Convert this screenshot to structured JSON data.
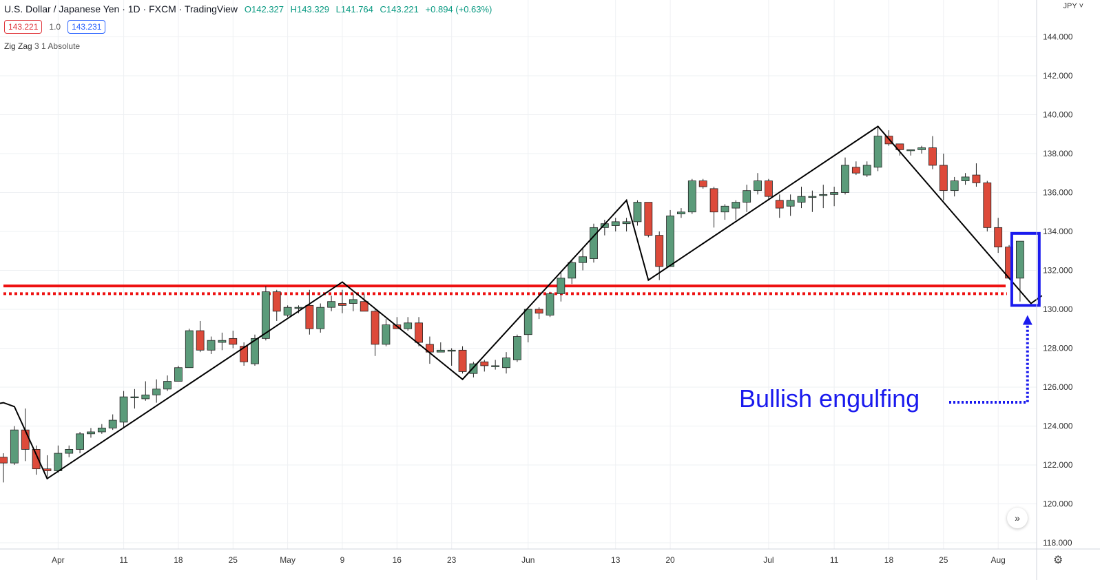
{
  "header": {
    "symbol_title": "U.S. Dollar / Japanese Yen · 1D · FXCM · TradingView",
    "ohlc": {
      "open": "O142.327",
      "high": "H143.329",
      "low": "L141.764",
      "close": "C143.221",
      "change": "+0.894 (+0.63%)"
    },
    "sell_price": "143.221",
    "spread": "1.0",
    "buy_price": "143.231",
    "indicator_name": "Zig Zag",
    "indicator_params": "3 1 Absolute",
    "currency": "JPY ˅"
  },
  "annotation": {
    "text": "Bullish engulfing"
  },
  "colors": {
    "up": "#5b9b7a",
    "down": "#dd4a3a",
    "zigzag": "#000000",
    "support": "#ee1111",
    "annotation": "#1a1aee"
  },
  "icons": {
    "scroll": "double-chevron-right-icon",
    "settings": "gear-icon"
  },
  "chart_data": {
    "type": "candlestick",
    "symbol": "USDJPY",
    "y_axis": {
      "min": 117.5,
      "max": 145.5,
      "ticks": [
        "118.000",
        "120.000",
        "122.000",
        "124.000",
        "126.000",
        "128.000",
        "130.000",
        "132.000",
        "134.000",
        "136.000",
        "138.000",
        "140.000",
        "142.000",
        "144.000"
      ],
      "side": "right"
    },
    "x_labels": [
      {
        "label": "Apr",
        "index": 5
      },
      {
        "label": "11",
        "index": 11
      },
      {
        "label": "18",
        "index": 16
      },
      {
        "label": "25",
        "index": 21
      },
      {
        "label": "May",
        "index": 26
      },
      {
        "label": "9",
        "index": 31
      },
      {
        "label": "16",
        "index": 36
      },
      {
        "label": "23",
        "index": 41
      },
      {
        "label": "Jun",
        "index": 48
      },
      {
        "label": "13",
        "index": 56
      },
      {
        "label": "20",
        "index": 61
      },
      {
        "label": "Jul",
        "index": 70
      },
      {
        "label": "11",
        "index": 76
      },
      {
        "label": "18",
        "index": 81
      },
      {
        "label": "25",
        "index": 86
      },
      {
        "label": "Aug",
        "index": 91
      }
    ],
    "ohlc": [
      [
        122.4,
        122.6,
        121.1,
        122.1
      ],
      [
        122.1,
        124.0,
        122.0,
        123.8
      ],
      [
        123.8,
        124.9,
        122.2,
        122.8
      ],
      [
        122.8,
        123.0,
        121.5,
        121.8
      ],
      [
        121.8,
        122.5,
        121.4,
        121.7
      ],
      [
        121.7,
        123.0,
        121.6,
        122.6
      ],
      [
        122.6,
        123.0,
        122.4,
        122.8
      ],
      [
        122.8,
        123.7,
        122.6,
        123.6
      ],
      [
        123.6,
        123.9,
        123.4,
        123.7
      ],
      [
        123.7,
        124.1,
        123.6,
        123.9
      ],
      [
        123.9,
        124.6,
        123.8,
        124.3
      ],
      [
        124.2,
        125.8,
        123.9,
        125.5
      ],
      [
        125.5,
        125.9,
        124.9,
        125.5
      ],
      [
        125.4,
        126.3,
        125.3,
        125.6
      ],
      [
        125.6,
        126.4,
        125.2,
        125.9
      ],
      [
        125.9,
        126.6,
        125.8,
        126.3
      ],
      [
        126.3,
        127.1,
        126.3,
        127.0
      ],
      [
        127.0,
        129.0,
        127.0,
        128.9
      ],
      [
        128.9,
        129.4,
        127.8,
        127.9
      ],
      [
        127.9,
        128.6,
        127.7,
        128.4
      ],
      [
        128.3,
        128.8,
        127.9,
        128.4
      ],
      [
        128.5,
        128.9,
        128.0,
        128.2
      ],
      [
        128.1,
        128.3,
        127.1,
        127.3
      ],
      [
        127.2,
        128.7,
        127.1,
        128.5
      ],
      [
        128.5,
        131.2,
        128.4,
        130.9
      ],
      [
        130.9,
        131.0,
        129.4,
        129.9
      ],
      [
        129.7,
        130.2,
        129.6,
        130.1
      ],
      [
        130.1,
        130.2,
        129.8,
        130.1
      ],
      [
        130.2,
        131.0,
        128.7,
        129.0
      ],
      [
        129.0,
        130.3,
        128.8,
        130.1
      ],
      [
        130.1,
        130.7,
        129.9,
        130.4
      ],
      [
        130.3,
        131.0,
        129.8,
        130.2
      ],
      [
        130.3,
        130.8,
        129.9,
        130.5
      ],
      [
        130.4,
        130.8,
        129.9,
        129.9
      ],
      [
        129.9,
        130.0,
        127.6,
        128.2
      ],
      [
        128.2,
        129.5,
        128.1,
        129.2
      ],
      [
        129.2,
        129.6,
        129.1,
        129.0
      ],
      [
        129.0,
        129.6,
        128.9,
        129.3
      ],
      [
        129.3,
        129.6,
        128.1,
        128.3
      ],
      [
        128.2,
        128.6,
        127.2,
        127.8
      ],
      [
        127.8,
        128.3,
        127.8,
        127.9
      ],
      [
        127.9,
        128.0,
        127.1,
        127.9
      ],
      [
        127.9,
        128.1,
        126.7,
        126.8
      ],
      [
        126.7,
        127.3,
        126.5,
        127.2
      ],
      [
        127.3,
        127.4,
        126.8,
        127.1
      ],
      [
        127.1,
        127.4,
        126.9,
        127.1
      ],
      [
        127.0,
        127.8,
        126.7,
        127.5
      ],
      [
        127.4,
        128.7,
        127.3,
        128.6
      ],
      [
        128.7,
        130.0,
        128.3,
        130.0
      ],
      [
        130.0,
        130.1,
        129.5,
        129.8
      ],
      [
        129.7,
        130.9,
        129.6,
        130.8
      ],
      [
        130.8,
        131.9,
        130.4,
        131.6
      ],
      [
        131.6,
        132.5,
        131.3,
        132.4
      ],
      [
        132.4,
        133.1,
        132.0,
        132.7
      ],
      [
        132.6,
        134.4,
        132.4,
        134.2
      ],
      [
        134.2,
        134.6,
        133.8,
        134.4
      ],
      [
        134.3,
        134.7,
        134.0,
        134.5
      ],
      [
        134.4,
        134.7,
        134.0,
        134.5
      ],
      [
        134.5,
        135.6,
        134.3,
        135.5
      ],
      [
        135.5,
        135.5,
        133.7,
        133.8
      ],
      [
        133.8,
        134.0,
        131.5,
        132.2
      ],
      [
        132.2,
        135.1,
        132.2,
        134.8
      ],
      [
        134.9,
        135.2,
        134.7,
        135.0
      ],
      [
        135.0,
        136.7,
        134.9,
        136.6
      ],
      [
        136.6,
        136.7,
        136.2,
        136.3
      ],
      [
        136.2,
        136.3,
        134.2,
        135.0
      ],
      [
        135.0,
        135.4,
        134.6,
        135.3
      ],
      [
        135.2,
        135.6,
        134.6,
        135.5
      ],
      [
        135.5,
        136.4,
        135.0,
        136.1
      ],
      [
        136.1,
        137.0,
        135.9,
        136.6
      ],
      [
        136.6,
        136.7,
        135.6,
        135.8
      ],
      [
        135.6,
        135.9,
        134.7,
        135.2
      ],
      [
        135.3,
        135.9,
        134.8,
        135.6
      ],
      [
        135.5,
        136.3,
        135.2,
        135.8
      ],
      [
        135.8,
        136.1,
        135.0,
        135.8
      ],
      [
        135.9,
        136.4,
        135.2,
        135.9
      ],
      [
        135.9,
        136.3,
        135.3,
        136.0
      ],
      [
        136.0,
        137.8,
        135.9,
        137.4
      ],
      [
        137.3,
        137.6,
        136.9,
        137.0
      ],
      [
        136.9,
        137.6,
        136.8,
        137.4
      ],
      [
        137.3,
        139.4,
        137.1,
        138.9
      ],
      [
        138.9,
        139.2,
        138.4,
        138.5
      ],
      [
        138.5,
        138.5,
        137.9,
        138.2
      ],
      [
        138.2,
        138.2,
        137.9,
        138.2
      ],
      [
        138.2,
        138.4,
        138.0,
        138.3
      ],
      [
        138.3,
        138.9,
        137.2,
        137.4
      ],
      [
        137.4,
        138.0,
        135.6,
        136.1
      ],
      [
        136.1,
        136.8,
        135.8,
        136.6
      ],
      [
        136.6,
        137.0,
        136.4,
        136.8
      ],
      [
        136.9,
        137.5,
        136.3,
        136.5
      ],
      [
        136.5,
        136.6,
        134.0,
        134.2
      ],
      [
        134.2,
        134.7,
        132.9,
        133.2
      ],
      [
        133.2,
        133.3,
        131.6,
        131.6
      ],
      [
        131.6,
        133.5,
        130.4,
        133.5
      ]
    ],
    "zigzag": [
      [
        -1,
        125.1
      ],
      [
        0,
        125.2
      ],
      [
        1,
        125.0
      ],
      [
        4,
        121.3
      ],
      [
        31,
        131.4
      ],
      [
        42,
        126.4
      ],
      [
        57,
        135.6
      ],
      [
        59,
        131.5
      ],
      [
        80,
        139.4
      ],
      [
        94,
        130.3
      ],
      [
        95,
        130.7
      ]
    ],
    "support_lines": [
      {
        "value": 131.2,
        "style": "solid"
      },
      {
        "value": 130.8,
        "style": "dotted"
      }
    ],
    "highlight_box": {
      "from_index": 93,
      "to_index": 94,
      "low": 130.2,
      "high": 133.9
    },
    "annotation_arrow": {
      "from_index": 94,
      "to_price": 129.7,
      "label": "Bullish engulfing"
    }
  }
}
